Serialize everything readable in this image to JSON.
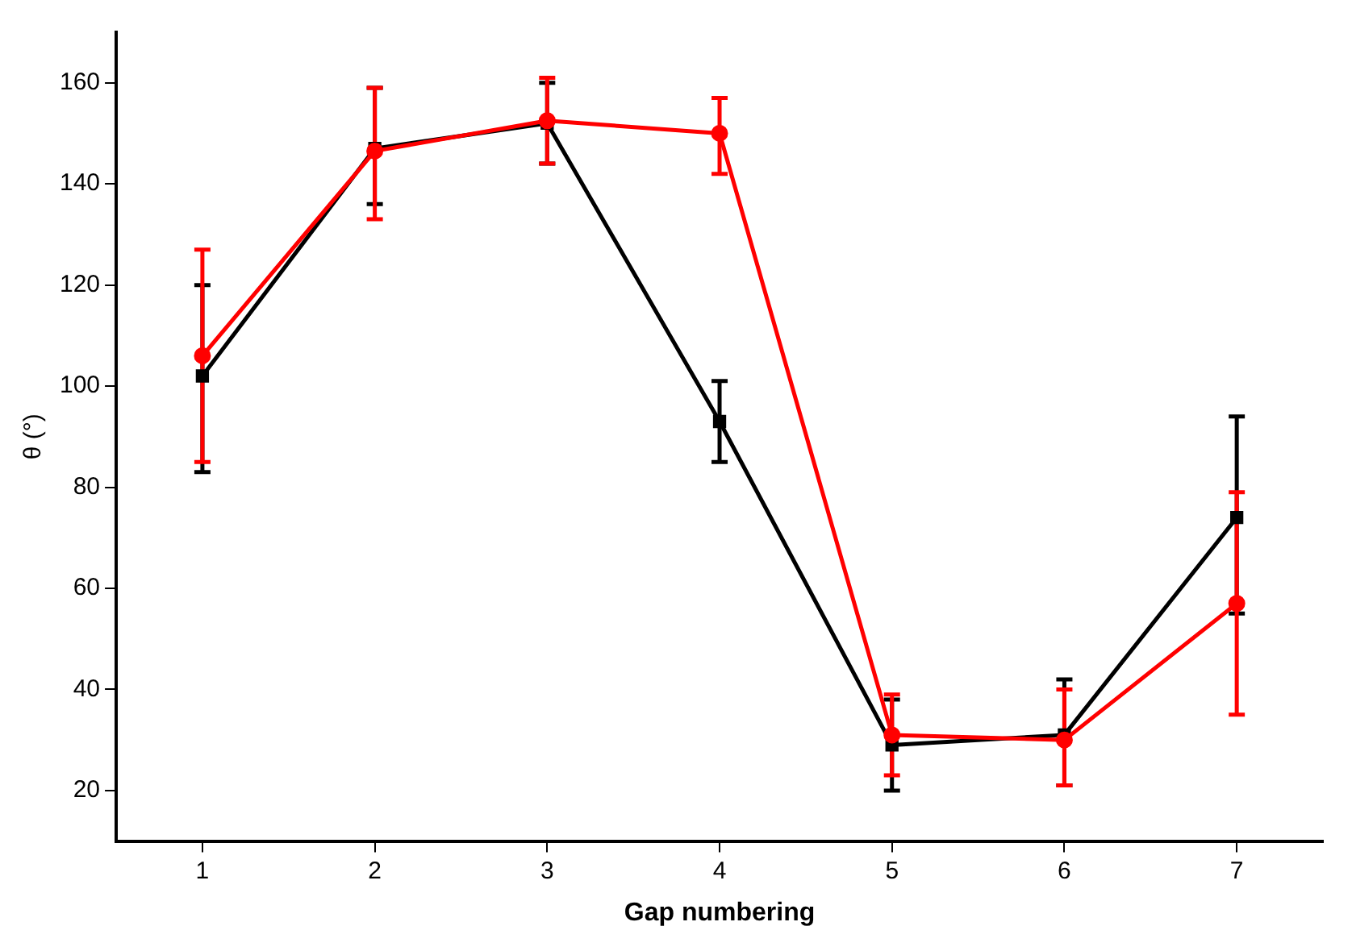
{
  "chart_data": {
    "type": "line",
    "xlabel": "Gap numbering",
    "ylabel": "θ (°)",
    "x": [
      1,
      2,
      3,
      4,
      5,
      6,
      7
    ],
    "xlim": [
      0.5,
      7.5
    ],
    "xticks": [
      1,
      2,
      3,
      4,
      5,
      6,
      7
    ],
    "ylim": [
      10,
      170
    ],
    "yticks": [
      20,
      40,
      60,
      80,
      100,
      120,
      140,
      160
    ],
    "grid": false,
    "legend": false,
    "line_style": "solid",
    "series": [
      {
        "color": "#000000",
        "marker": "square",
        "values": [
          102,
          147,
          152,
          93,
          29,
          31,
          74
        ],
        "errors": [
          [
            83,
            120
          ],
          [
            136,
            159
          ],
          [
            144,
            160
          ],
          [
            85,
            101
          ],
          [
            20,
            38
          ],
          [
            21,
            42
          ],
          [
            55,
            94
          ]
        ]
      },
      {
        "color": "#ff0000",
        "marker": "circle",
        "values": [
          106,
          146.5,
          152.5,
          150,
          31,
          30,
          57
        ],
        "errors": [
          [
            85,
            127
          ],
          [
            133,
            159
          ],
          [
            144,
            161
          ],
          [
            142,
            157
          ],
          [
            23,
            39
          ],
          [
            21,
            40
          ],
          [
            35,
            79
          ]
        ]
      }
    ]
  }
}
